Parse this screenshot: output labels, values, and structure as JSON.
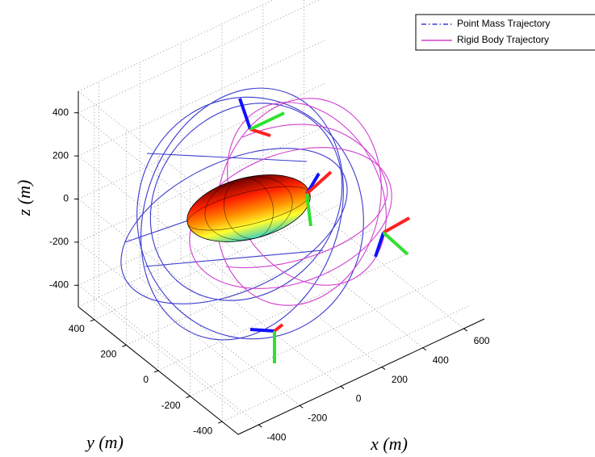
{
  "chart_data": {
    "type": "line3d",
    "xlabel": "x (m)",
    "ylabel": "y (m)",
    "zlabel": "z (m)",
    "xlim": [
      -500,
      700
    ],
    "ylim": [
      -500,
      500
    ],
    "zlim": [
      -500,
      500
    ],
    "xticks": [
      -400,
      -200,
      0,
      200,
      400,
      600
    ],
    "yticks": [
      -400,
      -200,
      0,
      200,
      400
    ],
    "zticks": [
      -400,
      -200,
      0,
      200,
      400
    ],
    "grid": true,
    "legend": "upper right",
    "series": [
      {
        "name": "Point Mass Trajectory",
        "color": "#3a3ad0",
        "style": "dashdot"
      },
      {
        "name": "Rigid Body Trajectory",
        "color": "#d040d0",
        "style": "solid"
      }
    ]
  }
}
